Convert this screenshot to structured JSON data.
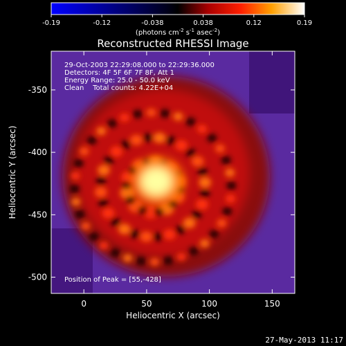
{
  "chart_data": {
    "type": "heatmap",
    "title": "Reconstructed RHESSI Image",
    "xlabel": "Heliocentric X (arcsec)",
    "ylabel": "Heliocentric Y (arcsec)",
    "xlim": [
      -26,
      168
    ],
    "ylim": [
      -513,
      -319
    ],
    "x_ticks": [
      0,
      50,
      100,
      150
    ],
    "y_ticks": [
      -350,
      -400,
      -450,
      -500
    ],
    "colorbar": {
      "min": -0.19,
      "max": 0.19,
      "ticks": [
        "-0.19",
        "-0.12",
        "-0.038",
        "0.038",
        "0.12",
        "0.19"
      ],
      "unit_label": "(photons cm",
      "unit_exp1": "-2",
      "unit_mid": " s",
      "unit_exp2": "-1",
      "unit_mid2": " asec",
      "unit_exp3": "-2",
      "unit_end": ")",
      "colormap": [
        "#0000ff",
        "#000000",
        "#ff0000",
        "#ffa000",
        "#ffffff"
      ]
    },
    "annotations": [
      "29-Oct-2003 22:29:08.000 to 22:29:36.000",
      "Detectors: 4F 5F 6F 7F 8F, Att 1",
      "Energy Range: 25.0 - 50.0 keV",
      "Clean    Total counts: 4.22E+04"
    ],
    "peak_label": "Position of Peak = [55,-428]",
    "peak": [
      55,
      -428
    ],
    "background_color": "#5a2aa0"
  },
  "timestamp": "27-May-2013 11:17"
}
